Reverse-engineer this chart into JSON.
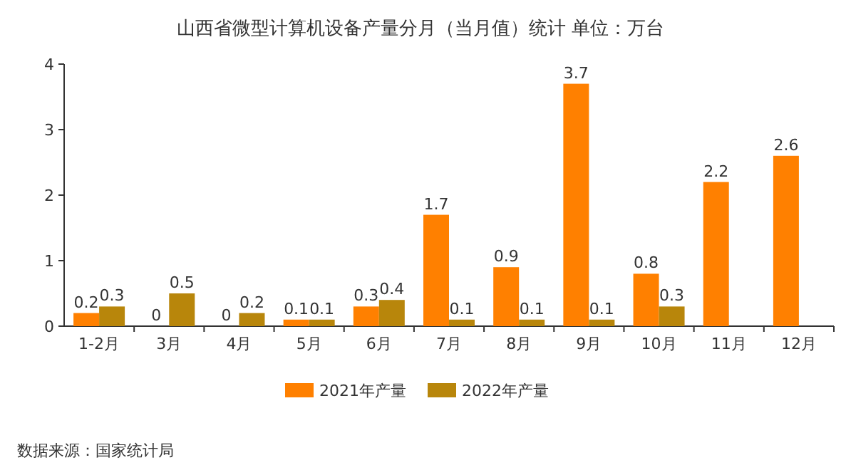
{
  "chart_data": {
    "type": "bar",
    "title": "山西省微型计算机设备产量分月（当月值）统计 单位：万台",
    "categories": [
      "1-2月",
      "3月",
      "4月",
      "5月",
      "6月",
      "7月",
      "8月",
      "9月",
      "10月",
      "11月",
      "12月"
    ],
    "series": [
      {
        "name": "2021年产量",
        "color": "#ff8000",
        "values": [
          0.2,
          0,
          0,
          0.1,
          0.3,
          1.7,
          0.9,
          3.7,
          0.8,
          2.2,
          2.6
        ]
      },
      {
        "name": "2022年产量",
        "color": "#b8860b",
        "values": [
          0.3,
          0.5,
          0.2,
          0.1,
          0.4,
          0.1,
          0.1,
          0.1,
          0.3,
          null,
          null
        ]
      }
    ],
    "ylim": [
      0,
      4
    ],
    "yticks": [
      0,
      1,
      2,
      3,
      4
    ],
    "data_labels": true,
    "legend": "bottom",
    "annotations": [
      "数据来源：国家统计局"
    ]
  }
}
